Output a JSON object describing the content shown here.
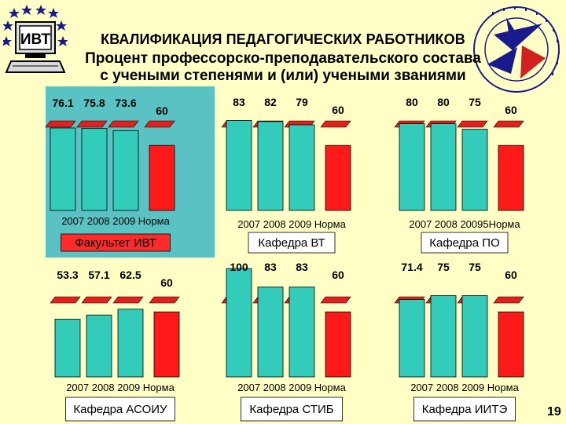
{
  "header": {
    "logo_text": "ИВТ",
    "title": "КВАЛИФИКАЦИЯ ПЕДАГОГИЧЕСКИХ РАБОТНИКОВ",
    "subtitle_line1": "Процент профессорско-преподавательского состава",
    "subtitle_line2": "с учеными степенями и (или) учеными званиями"
  },
  "page_number": "19",
  "colors": {
    "background": "#FFFFC6",
    "bar_year": "#33CCBB",
    "bar_norm": "#FF1A1A",
    "panel_highlight": "#5AC2C2",
    "label_box": "#FFFFFF"
  },
  "chart_data": [
    {
      "type": "bar",
      "title": "Факультет ИВТ",
      "categories": [
        "2007",
        "2008",
        "2009",
        "Норма"
      ],
      "category_label_text": "2007 2008 2009  Норма",
      "values": [
        76.1,
        75.8,
        73.6,
        60
      ],
      "value_labels": [
        "76.1",
        "75.8",
        "73.6",
        "60"
      ],
      "highlighted": true
    },
    {
      "type": "bar",
      "title": "Кафедра ВТ",
      "categories": [
        "2007",
        "2008",
        "2009",
        "Норма"
      ],
      "category_label_text": "2007 2008 2009  Норма",
      "values": [
        83,
        82,
        79,
        60
      ],
      "value_labels": [
        "83",
        "82",
        "79",
        "60"
      ]
    },
    {
      "type": "bar",
      "title": "Кафедра ПО",
      "categories": [
        "2007",
        "2008",
        "2009",
        "Норма"
      ],
      "category_label_text": "2007 2008 20095Норма",
      "values": [
        80,
        80,
        75,
        60
      ],
      "value_labels": [
        "80",
        "80",
        "75",
        "60"
      ]
    },
    {
      "type": "bar",
      "title": "Кафедра АСОИУ",
      "categories": [
        "2007",
        "2008",
        "2009",
        "Норма"
      ],
      "category_label_text": "2007 2008 2009  Норма",
      "values": [
        53.3,
        57.1,
        62.5,
        60
      ],
      "value_labels": [
        "53.3",
        "57.1",
        "62.5",
        "60"
      ]
    },
    {
      "type": "bar",
      "title": "Кафедра СТИБ",
      "categories": [
        "2007",
        "2008",
        "2009",
        "Норма"
      ],
      "category_label_text": "2007 2008 2009  Норма",
      "values": [
        100,
        83,
        83,
        60
      ],
      "value_labels": [
        "100",
        "83",
        "83",
        "60"
      ]
    },
    {
      "type": "bar",
      "title": "Кафедра ИИТЭ",
      "categories": [
        "2007",
        "2008",
        "2009",
        "Норма"
      ],
      "category_label_text": "2007 2008 2009  Норма",
      "values": [
        71.4,
        75,
        75,
        60
      ],
      "value_labels": [
        "71.4",
        "75",
        "75",
        "60"
      ]
    }
  ]
}
